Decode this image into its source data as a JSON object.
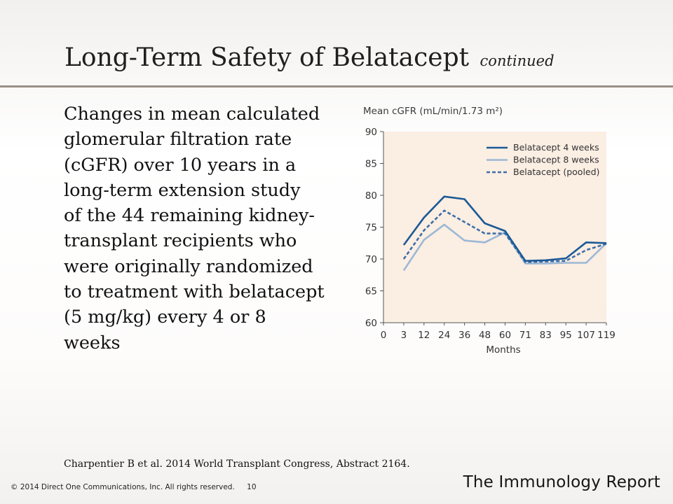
{
  "slide": {
    "title": "Long-Term Safety of Belatacept",
    "title_suffix": "continued",
    "body_lines": [
      "Changes in mean calculated",
      "glomerular filtration rate",
      "(cGFR) over 10 years in a",
      "long-term extension study",
      "of the 44 remaining kidney-",
      "transplant recipients who",
      "were originally randomized",
      "to treatment with belatacept",
      "(5 mg/kg) every 4 or 8",
      "weeks"
    ],
    "citation": "Charpentier B et al. 2014 World Transplant Congress, Abstract 2164.",
    "footer_copyright": "© 2014 Direct One Communications, Inc. All rights reserved.",
    "page_number": "10",
    "brand": "The Immunology Report"
  },
  "chart_data": {
    "type": "line",
    "title": "Mean cGFR (mL/min/1.73 m²)",
    "xlabel": "Months",
    "ylabel": "",
    "x_ticks": [
      "0",
      "3",
      "12",
      "24",
      "36",
      "48",
      "60",
      "71",
      "83",
      "95",
      "107",
      "119"
    ],
    "categories": [
      "3",
      "12",
      "24",
      "36",
      "48",
      "60",
      "71",
      "83",
      "95",
      "107",
      "119"
    ],
    "ylim": [
      60,
      90
    ],
    "y_ticks": [
      60,
      65,
      70,
      75,
      80,
      85,
      90
    ],
    "legend_position": "top-right",
    "colors": {
      "plot_bg": "#fbeee3",
      "axis": "#555555"
    },
    "series": [
      {
        "name": "Belatacept 4 weeks",
        "color": "#1b5a96",
        "dash": "solid",
        "values": [
          72.2,
          76.5,
          79.8,
          79.4,
          75.6,
          74.4,
          69.7,
          69.8,
          70.1,
          72.6,
          72.5
        ]
      },
      {
        "name": "Belatacept 8 weeks",
        "color": "#9cb8d6",
        "dash": "solid",
        "values": [
          68.2,
          73.0,
          75.4,
          72.9,
          72.6,
          74.2,
          69.3,
          69.3,
          69.4,
          69.4,
          72.5
        ]
      },
      {
        "name": "Belatacept (pooled)",
        "color": "#3f6fa8",
        "dash": "dashed",
        "values": [
          70.0,
          74.5,
          77.6,
          75.8,
          74.0,
          74.0,
          69.5,
          69.6,
          69.7,
          71.4,
          72.4
        ]
      }
    ]
  }
}
